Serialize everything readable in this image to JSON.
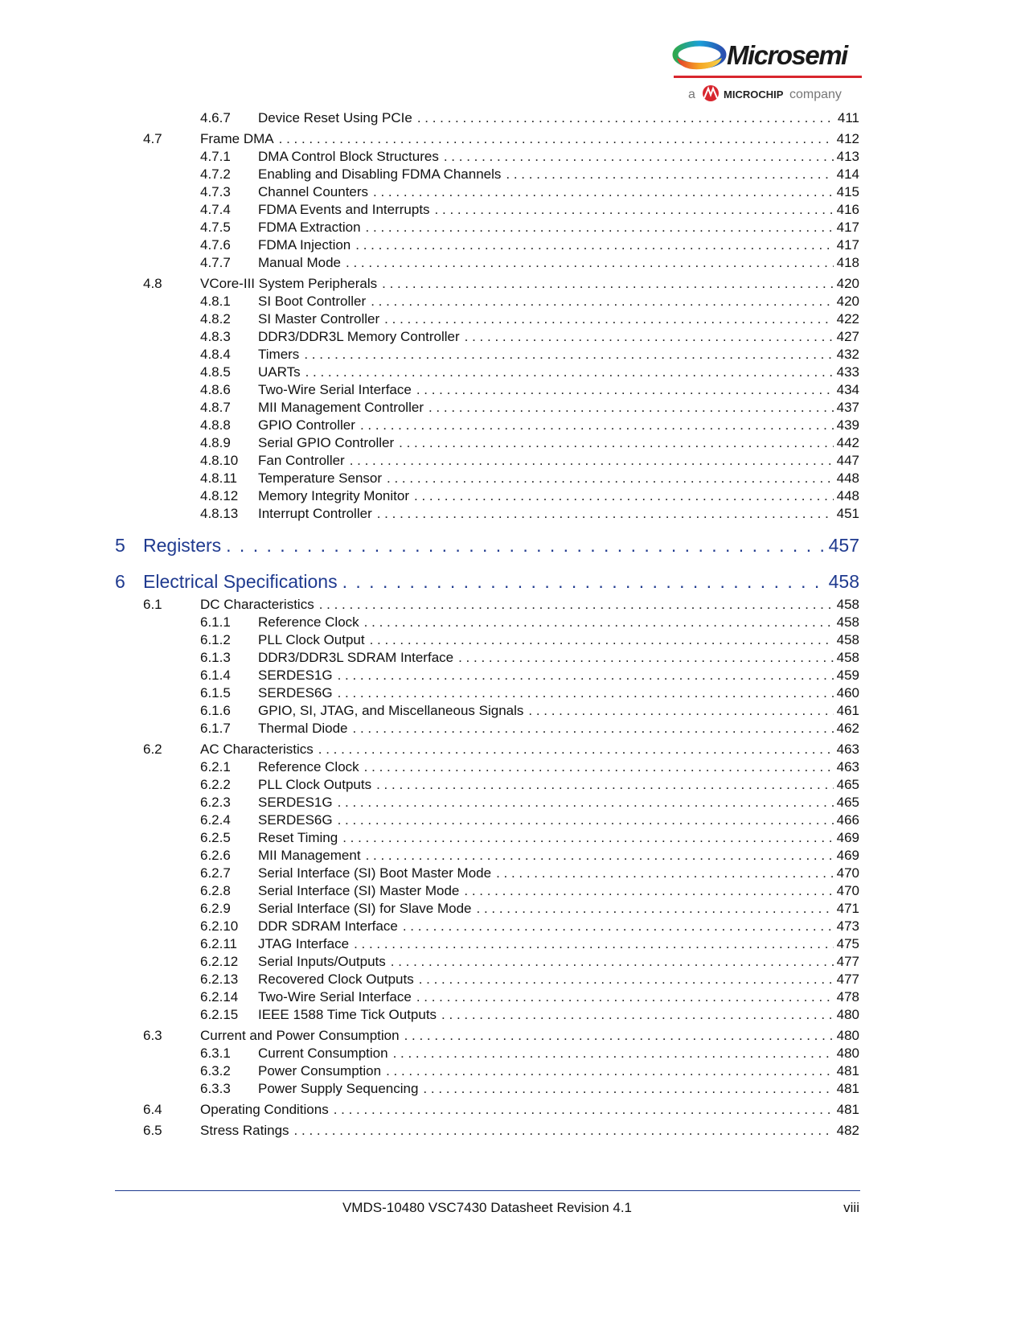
{
  "logo": {
    "brand": "Microsemi",
    "tagline_prefix": "a",
    "tagline_brand": "MICROCHIP",
    "tagline_suffix": "company"
  },
  "toc": [
    {
      "level": 3,
      "num": "4.6.7",
      "title": "Device Reset Using PCIe",
      "page": "411"
    },
    {
      "level": 2,
      "num": "4.7",
      "title": "Frame DMA",
      "page": "412"
    },
    {
      "level": 3,
      "num": "4.7.1",
      "title": "DMA Control Block Structures",
      "page": "413"
    },
    {
      "level": 3,
      "num": "4.7.2",
      "title": "Enabling and Disabling FDMA Channels",
      "page": "414"
    },
    {
      "level": 3,
      "num": "4.7.3",
      "title": "Channel Counters",
      "page": "415"
    },
    {
      "level": 3,
      "num": "4.7.4",
      "title": "FDMA Events and Interrupts",
      "page": "416"
    },
    {
      "level": 3,
      "num": "4.7.5",
      "title": "FDMA Extraction",
      "page": "417"
    },
    {
      "level": 3,
      "num": "4.7.6",
      "title": "FDMA Injection",
      "page": "417"
    },
    {
      "level": 3,
      "num": "4.7.7",
      "title": "Manual Mode",
      "page": "418"
    },
    {
      "level": 2,
      "num": "4.8",
      "title": "VCore-III System Peripherals",
      "page": "420"
    },
    {
      "level": 3,
      "num": "4.8.1",
      "title": "SI Boot Controller",
      "page": "420"
    },
    {
      "level": 3,
      "num": "4.8.2",
      "title": "SI Master Controller",
      "page": "422"
    },
    {
      "level": 3,
      "num": "4.8.3",
      "title": "DDR3/DDR3L Memory Controller",
      "page": "427"
    },
    {
      "level": 3,
      "num": "4.8.4",
      "title": "Timers",
      "page": "432"
    },
    {
      "level": 3,
      "num": "4.8.5",
      "title": "UARTs",
      "page": "433"
    },
    {
      "level": 3,
      "num": "4.8.6",
      "title": "Two-Wire Serial Interface",
      "page": "434"
    },
    {
      "level": 3,
      "num": "4.8.7",
      "title": "MII Management Controller",
      "page": "437"
    },
    {
      "level": 3,
      "num": "4.8.8",
      "title": "GPIO Controller",
      "page": "439"
    },
    {
      "level": 3,
      "num": "4.8.9",
      "title": "Serial GPIO Controller",
      "page": "442"
    },
    {
      "level": 3,
      "num": "4.8.10",
      "title": "Fan Controller",
      "page": "447"
    },
    {
      "level": 3,
      "num": "4.8.11",
      "title": "Temperature Sensor",
      "page": "448"
    },
    {
      "level": 3,
      "num": "4.8.12",
      "title": "Memory Integrity Monitor",
      "page": "448"
    },
    {
      "level": 3,
      "num": "4.8.13",
      "title": "Interrupt Controller",
      "page": "451"
    },
    {
      "level": 1,
      "num": "5",
      "title": "Registers",
      "page": "457"
    },
    {
      "level": 1,
      "num": "6",
      "title": "Electrical Specifications",
      "page": "458"
    },
    {
      "level": 2,
      "num": "6.1",
      "title": "DC Characteristics",
      "page": "458"
    },
    {
      "level": 3,
      "num": "6.1.1",
      "title": "Reference Clock",
      "page": "458"
    },
    {
      "level": 3,
      "num": "6.1.2",
      "title": "PLL Clock Output",
      "page": "458"
    },
    {
      "level": 3,
      "num": "6.1.3",
      "title": "DDR3/DDR3L SDRAM Interface",
      "page": "458"
    },
    {
      "level": 3,
      "num": "6.1.4",
      "title": "SERDES1G",
      "page": "459"
    },
    {
      "level": 3,
      "num": "6.1.5",
      "title": "SERDES6G",
      "page": "460"
    },
    {
      "level": 3,
      "num": "6.1.6",
      "title": "GPIO, SI, JTAG, and Miscellaneous Signals",
      "page": "461"
    },
    {
      "level": 3,
      "num": "6.1.7",
      "title": "Thermal Diode",
      "page": "462"
    },
    {
      "level": 2,
      "num": "6.2",
      "title": "AC Characteristics",
      "page": "463"
    },
    {
      "level": 3,
      "num": "6.2.1",
      "title": "Reference Clock",
      "page": "463"
    },
    {
      "level": 3,
      "num": "6.2.2",
      "title": "PLL Clock Outputs",
      "page": "465"
    },
    {
      "level": 3,
      "num": "6.2.3",
      "title": "SERDES1G",
      "page": "465"
    },
    {
      "level": 3,
      "num": "6.2.4",
      "title": "SERDES6G",
      "page": "466"
    },
    {
      "level": 3,
      "num": "6.2.5",
      "title": "Reset Timing",
      "page": "469"
    },
    {
      "level": 3,
      "num": "6.2.6",
      "title": "MII Management",
      "page": "469"
    },
    {
      "level": 3,
      "num": "6.2.7",
      "title": "Serial Interface (SI) Boot Master Mode",
      "page": "470"
    },
    {
      "level": 3,
      "num": "6.2.8",
      "title": "Serial Interface (SI) Master Mode",
      "page": "470"
    },
    {
      "level": 3,
      "num": "6.2.9",
      "title": "Serial Interface (SI) for Slave Mode",
      "page": "471"
    },
    {
      "level": 3,
      "num": "6.2.10",
      "title": "DDR SDRAM Interface",
      "page": "473"
    },
    {
      "level": 3,
      "num": "6.2.11",
      "title": "JTAG Interface",
      "page": "475"
    },
    {
      "level": 3,
      "num": "6.2.12",
      "title": "Serial Inputs/Outputs",
      "page": "477"
    },
    {
      "level": 3,
      "num": "6.2.13",
      "title": "Recovered Clock Outputs",
      "page": "477"
    },
    {
      "level": 3,
      "num": "6.2.14",
      "title": "Two-Wire Serial Interface",
      "page": "478"
    },
    {
      "level": 3,
      "num": "6.2.15",
      "title": "IEEE 1588 Time Tick Outputs",
      "page": "480"
    },
    {
      "level": 2,
      "num": "6.3",
      "title": "Current and Power Consumption",
      "page": "480"
    },
    {
      "level": 3,
      "num": "6.3.1",
      "title": "Current Consumption",
      "page": "480"
    },
    {
      "level": 3,
      "num": "6.3.2",
      "title": "Power Consumption",
      "page": "481"
    },
    {
      "level": 3,
      "num": "6.3.3",
      "title": "Power Supply Sequencing",
      "page": "481"
    },
    {
      "level": 2,
      "num": "6.4",
      "title": "Operating Conditions",
      "page": "481"
    },
    {
      "level": 2,
      "num": "6.5",
      "title": "Stress Ratings",
      "page": "482"
    }
  ],
  "footer": {
    "text": "VMDS-10480 VSC7430 Datasheet Revision 4.1",
    "page": "viii"
  },
  "colors": {
    "heading_blue": "#1f3a8f",
    "logo_red": "#d8262e"
  }
}
